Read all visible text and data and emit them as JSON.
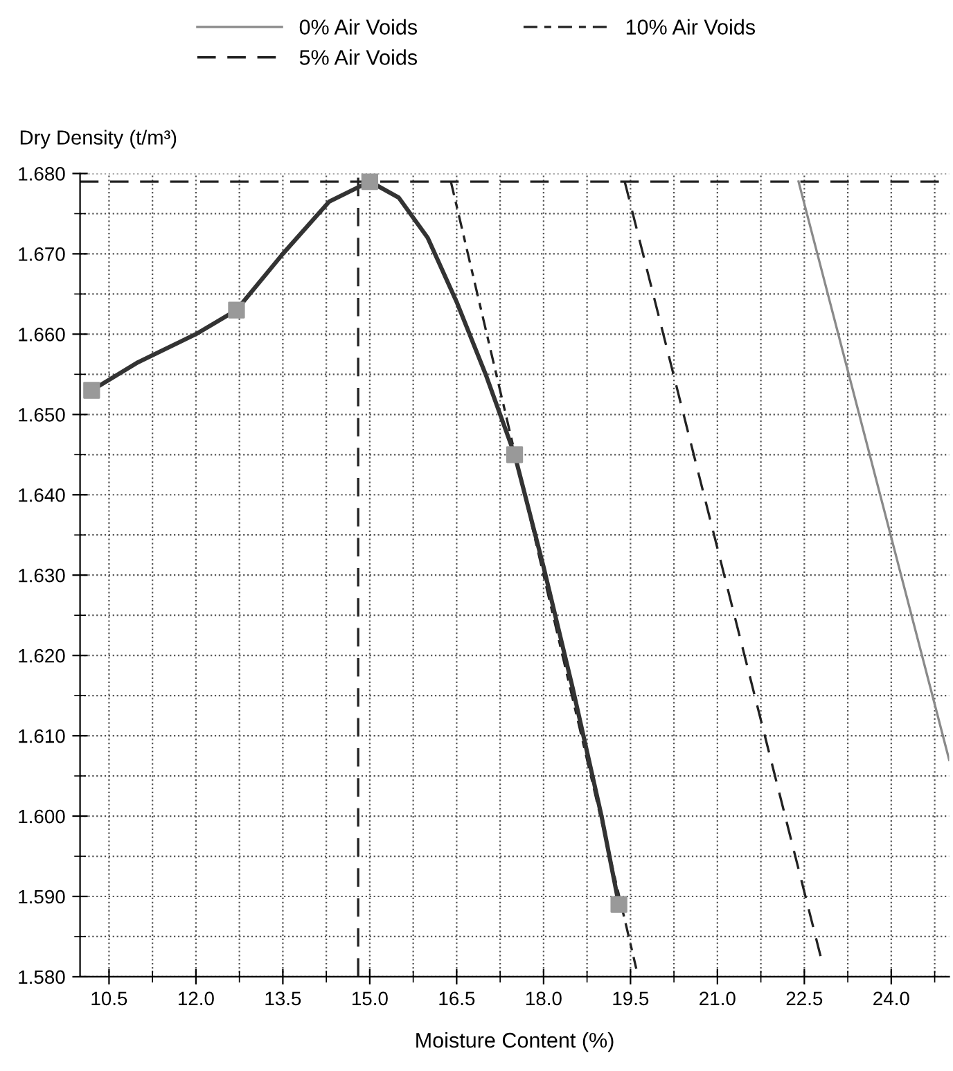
{
  "chart_data": {
    "type": "line",
    "xlabel": "Moisture Content (%)",
    "ylabel": "Dry Density (t/m³)",
    "xlim": [
      10,
      25
    ],
    "ylim": [
      1.58,
      1.68
    ],
    "xticks": [
      {
        "value": 10.5,
        "label": "10.5"
      },
      {
        "value": 12,
        "label": "12.0"
      },
      {
        "value": 13.5,
        "label": "13.5"
      },
      {
        "value": 15,
        "label": "15.0"
      },
      {
        "value": 16.5,
        "label": "16.5"
      },
      {
        "value": 18,
        "label": "18.0"
      },
      {
        "value": 19.5,
        "label": "19.5"
      },
      {
        "value": 21,
        "label": "21.0"
      },
      {
        "value": 22.5,
        "label": "22.5"
      },
      {
        "value": 24,
        "label": "24.0"
      }
    ],
    "yticks": [
      {
        "value": 1.58,
        "label": "1.580"
      },
      {
        "value": 1.59,
        "label": "1.590"
      },
      {
        "value": 1.6,
        "label": "1.600"
      },
      {
        "value": 1.61,
        "label": "1.610"
      },
      {
        "value": 1.62,
        "label": "1.620"
      },
      {
        "value": 1.63,
        "label": "1.630"
      },
      {
        "value": 1.64,
        "label": "1.640"
      },
      {
        "value": 1.65,
        "label": "1.650"
      },
      {
        "value": 1.66,
        "label": "1.660"
      },
      {
        "value": 1.67,
        "label": "1.670"
      },
      {
        "value": 1.68,
        "label": "1.680"
      }
    ],
    "grid": true,
    "legend": "top",
    "series": [
      {
        "name": "0% Air Voids",
        "color": "#8a8a8a",
        "line_style": "solid",
        "x": [
          22.4,
          25.0
        ],
        "values": [
          1.679,
          1.607
        ]
      },
      {
        "name": "5% Air Voids",
        "color": "#222222",
        "line_style": "dashed",
        "x": [
          19.4,
          22.8
        ],
        "values": [
          1.679,
          1.582
        ]
      },
      {
        "name": "10% Air Voids",
        "color": "#222222",
        "line_style": "dashdot",
        "x": [
          16.4,
          19.6
        ],
        "values": [
          1.679,
          1.581
        ]
      },
      {
        "color": "#333333",
        "line_style": "solid",
        "x": [
          10.2,
          11,
          12,
          12.7,
          13.5,
          14.3,
          15,
          15.5,
          16,
          16.5,
          17,
          17.5,
          18,
          18.5,
          19,
          19.3
        ],
        "values": [
          1.653,
          1.6565,
          1.66,
          1.663,
          1.67,
          1.6765,
          1.679,
          1.677,
          1.672,
          1.664,
          1.655,
          1.645,
          1.631,
          1.616,
          1.6,
          1.589
        ]
      },
      {
        "type": "scatter",
        "marker": "square",
        "color": "#999999",
        "x": [
          10.2,
          12.7,
          15,
          17.5,
          19.3
        ],
        "values": [
          1.653,
          1.663,
          1.679,
          1.645,
          1.589
        ]
      }
    ],
    "ref_lines": [
      {
        "axis": "y",
        "value": 1.679,
        "color": "#222222",
        "line_style": "dashed"
      },
      {
        "axis": "x",
        "value": 14.8,
        "color": "#222222",
        "line_style": "dashed"
      }
    ]
  }
}
